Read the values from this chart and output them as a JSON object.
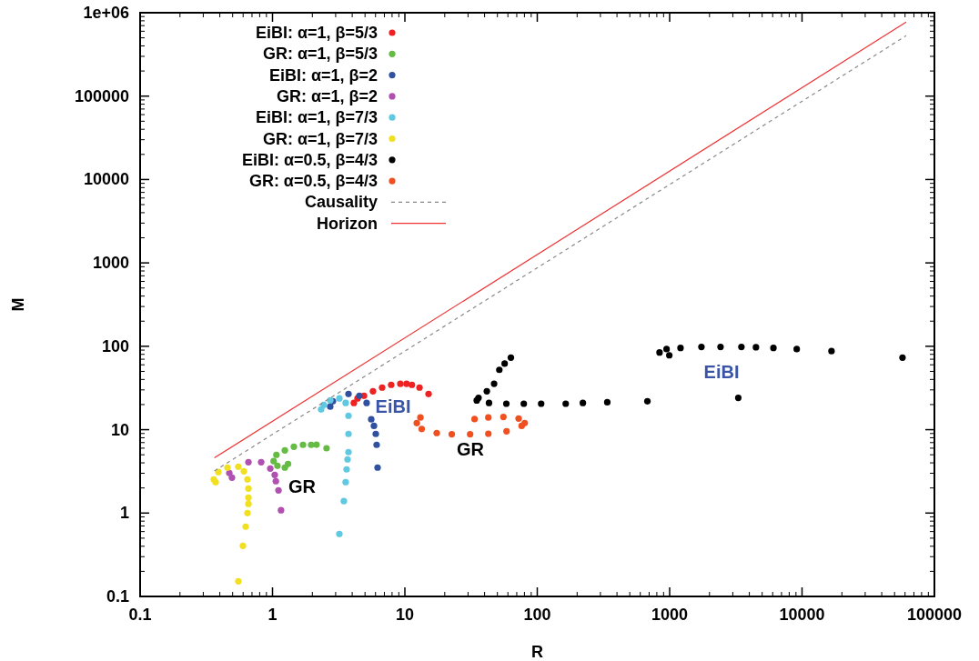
{
  "chart_data": {
    "type": "scatter",
    "xlabel": "R",
    "ylabel": "M",
    "log": "xy",
    "grid": false,
    "legend": "top left",
    "marker": "circle",
    "xlim": [
      0.1,
      100000
    ],
    "xticks": [
      0.1,
      1,
      10,
      100,
      1000,
      10000,
      100000
    ],
    "ylim": [
      0.1,
      1000000
    ],
    "yticks": [
      0.1,
      1,
      10,
      100,
      1000,
      10000,
      100000,
      {
        "value": 1000000,
        "label": "1e+06"
      }
    ],
    "series": [
      {
        "name": "EiBI: α=1, β=5/3",
        "color": "#ee2222",
        "x": [
          4.12,
          4.39,
          4.91,
          5.74,
          6.73,
          7.88,
          9.24,
          10.3,
          11.3,
          12.9,
          15.1
        ],
        "values": [
          20.9,
          23.7,
          25.5,
          28.9,
          32.0,
          34.5,
          35.4,
          35.4,
          34.5,
          32.0,
          26.8
        ]
      },
      {
        "name": "GR: α=1, β=5/3",
        "color": "#66bb44",
        "x": [
          1.31,
          1.24,
          1.09,
          1.02,
          1.07,
          1.24,
          1.45,
          1.7,
          1.96,
          2.15,
          2.56
        ],
        "values": [
          3.88,
          3.51,
          3.69,
          4.19,
          4.99,
          5.65,
          6.25,
          6.58,
          6.58,
          6.6,
          5.99
        ]
      },
      {
        "name": "EiBI: α=1, β=2",
        "color": "#3050a0",
        "x": [
          2.73,
          2.86,
          3.75,
          4.53,
          5.14,
          5.57,
          5.84,
          6.03,
          6.12,
          6.22
        ],
        "values": [
          18.9,
          21.9,
          26.8,
          25.5,
          20.9,
          13.3,
          11.1,
          8.89,
          6.58,
          3.51
        ]
      },
      {
        "name": "GR: α=1, β=2",
        "color": "#b050b0",
        "x": [
          0.494,
          0.472,
          0.658,
          0.821,
          0.962,
          1.04,
          1.06,
          1.11,
          1.16
        ],
        "values": [
          2.66,
          3.02,
          4.08,
          4.08,
          3.42,
          2.87,
          2.41,
          1.87,
          1.08
        ]
      },
      {
        "name": "EiBI: α=1, β=7/3",
        "color": "#60c8e0",
        "x": [
          2.33,
          2.44,
          2.73,
          3.2,
          3.57,
          3.75,
          3.75,
          3.75,
          3.69,
          3.63,
          3.57,
          3.46,
          3.2
        ],
        "values": [
          17.5,
          19.8,
          22.5,
          23.7,
          20.9,
          14.7,
          8.89,
          5.38,
          4.4,
          3.34,
          2.35,
          1.39,
          0.561
        ]
      },
      {
        "name": "GR: α=1, β=7/3",
        "color": "#f0e020",
        "x": [
          0.372,
          0.36,
          0.39,
          0.457,
          0.552,
          0.608,
          0.647,
          0.658,
          0.658,
          0.658,
          0.647,
          0.627,
          0.598,
          0.552
        ],
        "values": [
          2.35,
          2.53,
          3.1,
          3.51,
          3.6,
          3.17,
          2.53,
          1.97,
          1.53,
          1.29,
          1.0,
          0.686,
          0.405,
          0.152
        ]
      },
      {
        "name": "EiBI: α=0.5, β=4/3",
        "color": "#000000",
        "x": [
          63.2,
          56.7,
          51.7,
          47.2,
          41.6,
          36.0,
          34.9,
          43.2,
          58.4,
          79.1,
          107,
          164,
          221,
          338,
          679,
          3300,
          839,
          994,
          948,
          1208,
          1738,
          2423,
          3484,
          4487,
          6081,
          9120,
          16700,
          57400
        ],
        "values": [
          73.1,
          61.9,
          52.2,
          35.5,
          28.9,
          24.1,
          22.4,
          20.9,
          20.5,
          20.5,
          20.5,
          20.5,
          20.9,
          21.3,
          21.9,
          24.1,
          84.3,
          78.0,
          92.7,
          95.5,
          98.2,
          98.2,
          98.2,
          97.3,
          95.5,
          92.7,
          87.5,
          73.1
        ]
      },
      {
        "name": "GR: α=0.5, β=4/3",
        "color": "#f05020",
        "x": [
          13.1,
          12.3,
          13.4,
          17.4,
          22.6,
          31.1,
          42.7,
          58.6,
          76.2,
          80.4,
          72.3,
          55.5,
          42.7,
          33.6
        ],
        "values": [
          14.0,
          12.0,
          10.2,
          9.12,
          8.82,
          8.82,
          8.95,
          9.58,
          11.1,
          12.0,
          13.6,
          14.2,
          14.0,
          13.4
        ]
      },
      {
        "name": "Causality",
        "type": "line",
        "marker": "none",
        "line_style": "dashed",
        "color": "#888888",
        "x": [
          0.364,
          61200
        ],
        "values": [
          3.2,
          530000
        ]
      },
      {
        "name": "Horizon",
        "type": "line",
        "marker": "none",
        "line_style": "solid",
        "color": "#ee3333",
        "x": [
          0.364,
          61200
        ],
        "values": [
          4.59,
          771000
        ]
      }
    ],
    "annotations": [
      "EiBI",
      "GR",
      "GR",
      "EiBI"
    ]
  }
}
